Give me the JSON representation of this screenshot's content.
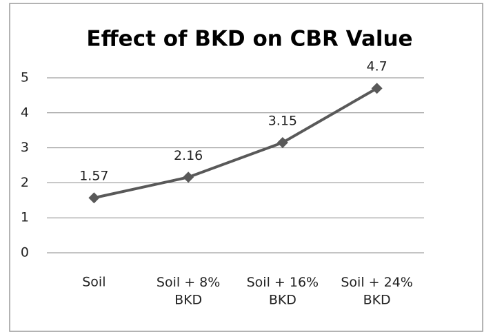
{
  "chart_data": {
    "type": "line",
    "title": "Effect of BKD on CBR Value",
    "categories": [
      "Soil",
      "Soil + 8%\nBKD",
      "Soil + 16%\nBKD",
      "Soil + 24%\nBKD"
    ],
    "series": [
      {
        "name": "CBR Value",
        "color": "#595959",
        "values": [
          1.57,
          2.16,
          3.15,
          4.7
        ]
      }
    ],
    "ylim": [
      0,
      5
    ],
    "yticks": [
      0,
      1,
      2,
      3,
      4,
      5
    ],
    "grid": true
  }
}
